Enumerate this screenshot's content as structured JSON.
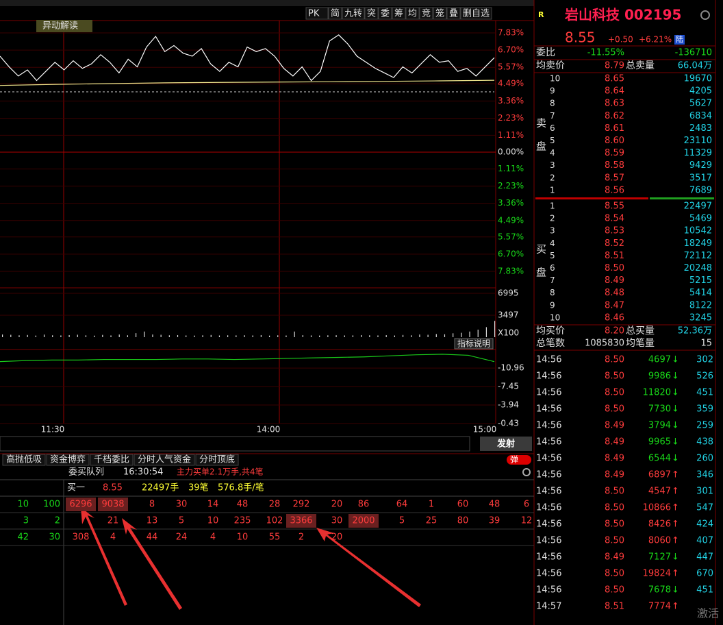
{
  "toolbar": [
    "PK",
    "简",
    "九转",
    "突",
    "委",
    "筹",
    "均",
    "竞",
    "笼",
    "叠",
    "删自选"
  ],
  "tag": "异动解读",
  "chart_data": [
    {
      "type": "line",
      "ylim": [
        -7.83,
        7.83
      ],
      "yticks": [
        {
          "value": 7.83,
          "label": "7.83%"
        },
        {
          "value": 6.7,
          "label": "6.70%"
        },
        {
          "value": 5.57,
          "label": "5.57%"
        },
        {
          "value": 4.49,
          "label": "4.49%"
        },
        {
          "value": 3.36,
          "label": "3.36%"
        },
        {
          "value": 2.23,
          "label": "2.23%"
        },
        {
          "value": 1.11,
          "label": "1.11%"
        },
        {
          "value": 0,
          "label": "0.00%"
        },
        {
          "value": -1.11,
          "label": "1.11%"
        },
        {
          "value": -2.23,
          "label": "2.23%"
        },
        {
          "value": -3.36,
          "label": "3.36%"
        },
        {
          "value": -4.49,
          "label": "4.49%"
        },
        {
          "value": -5.57,
          "label": "5.57%"
        },
        {
          "value": -6.7,
          "label": "6.70%"
        },
        {
          "value": -7.83,
          "label": "7.83%"
        }
      ],
      "series": [
        {
          "color": "#ffffff",
          "values": [
            6.3,
            5.6,
            5.0,
            5.4,
            4.7,
            5.3,
            5.9,
            5.4,
            6.0,
            5.5,
            5.8,
            6.4,
            5.9,
            5.2,
            6.1,
            5.6,
            6.9,
            7.6,
            6.6,
            7.0,
            6.5,
            6.3,
            6.8,
            5.8,
            5.3,
            5.9,
            5.6,
            6.9,
            6.6,
            6.8,
            6.3,
            5.5,
            5.0,
            5.6,
            4.7,
            5.3,
            7.3,
            7.7,
            7.1,
            6.3,
            5.9,
            5.5,
            5.2,
            4.9,
            5.6,
            5.2,
            5.8,
            6.4,
            5.9,
            6.0,
            5.3,
            5.5,
            5.0,
            5.6,
            6.2
          ]
        },
        {
          "color": "#f0e68c",
          "values": [
            4.38,
            4.45,
            4.5,
            4.55,
            4.58,
            4.6,
            4.62,
            4.65,
            4.68,
            4.72
          ]
        }
      ],
      "x_labels": [
        "11:30",
        "14:00",
        "15:00"
      ]
    },
    {
      "type": "bar",
      "color": "#dddddd",
      "ylim": [
        0,
        7000
      ],
      "yticks": [
        6995,
        3497
      ],
      "unit_label": "X100",
      "button": "指标说明",
      "values": [
        420,
        380,
        300,
        350,
        260,
        410,
        300,
        280,
        330,
        390,
        300,
        250,
        360,
        280,
        420,
        300,
        640,
        900,
        420,
        380,
        300,
        330,
        280,
        260,
        300,
        350,
        270,
        300,
        290,
        310,
        280,
        330,
        250,
        300,
        270,
        900,
        320,
        280,
        260,
        300,
        310,
        280,
        290,
        330,
        300,
        280,
        320,
        270,
        350,
        300,
        420,
        380,
        500,
        460,
        620,
        700,
        900,
        1200,
        1600,
        2600
      ]
    },
    {
      "type": "line",
      "color": "#19c919",
      "ylim": [
        -0.43,
        -14.5
      ],
      "yticks": [
        -0.43,
        -3.94,
        -7.45,
        -10.96
      ],
      "values": [
        -12.2,
        -12.4,
        -12.5,
        -12.5,
        -12.6,
        -12.6,
        -12.6,
        -12.7,
        -12.7,
        -12.6,
        -12.7,
        -12.8,
        -12.9,
        -13.0,
        -13.1,
        -13.3,
        -13.5,
        -13.6,
        -13.4,
        -12.2
      ]
    }
  ],
  "input_button": "发射",
  "tabs": [
    "高抛低吸",
    "资金博弈",
    "千档委比",
    "分时人气资金",
    "分时顶底"
  ],
  "toggle": "弹",
  "queue": {
    "title": "委买队列",
    "time": "16:30:54",
    "note": "主力买单2.1万手,共4笔",
    "level": "买一",
    "price": "8.55",
    "volume": "22497手",
    "count": "39笔",
    "avg": "576.8手/笔",
    "rows": [
      [
        6296,
        9038,
        8,
        30,
        14,
        48,
        28,
        292,
        20,
        86,
        64,
        1,
        60,
        48,
        6
      ],
      [
        null,
        21,
        13,
        5,
        10,
        235,
        102,
        3366,
        30,
        2000,
        5,
        25,
        80,
        39,
        12
      ],
      [
        308,
        4,
        44,
        24,
        4,
        10,
        55,
        2,
        20
      ]
    ],
    "left_rows": [
      [
        10,
        100
      ],
      [
        3,
        2
      ],
      [
        42,
        30
      ]
    ]
  },
  "quote": {
    "flag": "R",
    "name": "岩山科技 002195",
    "price": "8.55",
    "change": "+0.50",
    "pct": "+6.21%",
    "market": "陆",
    "ratio_label": "委比",
    "ratio": "-11.55%",
    "ratio_diff": "-136710",
    "avg_sell_label": "均卖价",
    "avg_sell": "8.79",
    "total_sell_label": "总卖量",
    "total_sell": "66.04万",
    "sell_chars": [
      "卖",
      "盘"
    ],
    "buy_chars": [
      "买",
      "盘"
    ],
    "asks": [
      [
        "10",
        "8.65",
        19670
      ],
      [
        "9",
        "8.64",
        4205
      ],
      [
        "8",
        "8.63",
        5627
      ],
      [
        "7",
        "8.62",
        6834
      ],
      [
        "6",
        "8.61",
        2483
      ],
      [
        "5",
        "8.60",
        23110
      ],
      [
        "4",
        "8.59",
        11329
      ],
      [
        "3",
        "8.58",
        9429
      ],
      [
        "2",
        "8.57",
        3517
      ],
      [
        "1",
        "8.56",
        7689
      ]
    ],
    "bids": [
      [
        "1",
        "8.55",
        22497
      ],
      [
        "2",
        "8.54",
        5469
      ],
      [
        "3",
        "8.53",
        10542
      ],
      [
        "4",
        "8.52",
        18249
      ],
      [
        "5",
        "8.51",
        72112
      ],
      [
        "6",
        "8.50",
        20248
      ],
      [
        "7",
        "8.49",
        5215
      ],
      [
        "8",
        "8.48",
        5414
      ],
      [
        "9",
        "8.47",
        8122
      ],
      [
        "10",
        "8.46",
        3245
      ]
    ],
    "avg_buy_label": "均买价",
    "avg_buy": "8.20",
    "total_buy_label": "总买量",
    "total_buy": "52.36万",
    "trades_label": "总笔数",
    "trades": "1085830",
    "avg_lot_label": "均笔量",
    "avg_lot": "15"
  },
  "ticks": [
    [
      "14:56",
      "8.50",
      4697,
      "↓",
      302
    ],
    [
      "14:56",
      "8.50",
      9986,
      "↓",
      526
    ],
    [
      "14:56",
      "8.50",
      11820,
      "↓",
      451
    ],
    [
      "14:56",
      "8.50",
      7730,
      "↓",
      359
    ],
    [
      "14:56",
      "8.49",
      3794,
      "↓",
      259
    ],
    [
      "14:56",
      "8.49",
      9965,
      "↓",
      438
    ],
    [
      "14:56",
      "8.49",
      6544,
      "↓",
      260
    ],
    [
      "14:56",
      "8.49",
      6897,
      "↑",
      346
    ],
    [
      "14:56",
      "8.50",
      4547,
      "↑",
      301
    ],
    [
      "14:56",
      "8.50",
      10866,
      "↑",
      547
    ],
    [
      "14:56",
      "8.50",
      8426,
      "↑",
      424
    ],
    [
      "14:56",
      "8.50",
      8060,
      "↑",
      407
    ],
    [
      "14:56",
      "8.49",
      7127,
      "↓",
      447
    ],
    [
      "14:56",
      "8.50",
      19824,
      "↑",
      670
    ],
    [
      "14:56",
      "8.50",
      7678,
      "↓",
      451
    ],
    [
      "14:57",
      "8.51",
      7774,
      "↑"
    ]
  ],
  "watermark": "激活"
}
